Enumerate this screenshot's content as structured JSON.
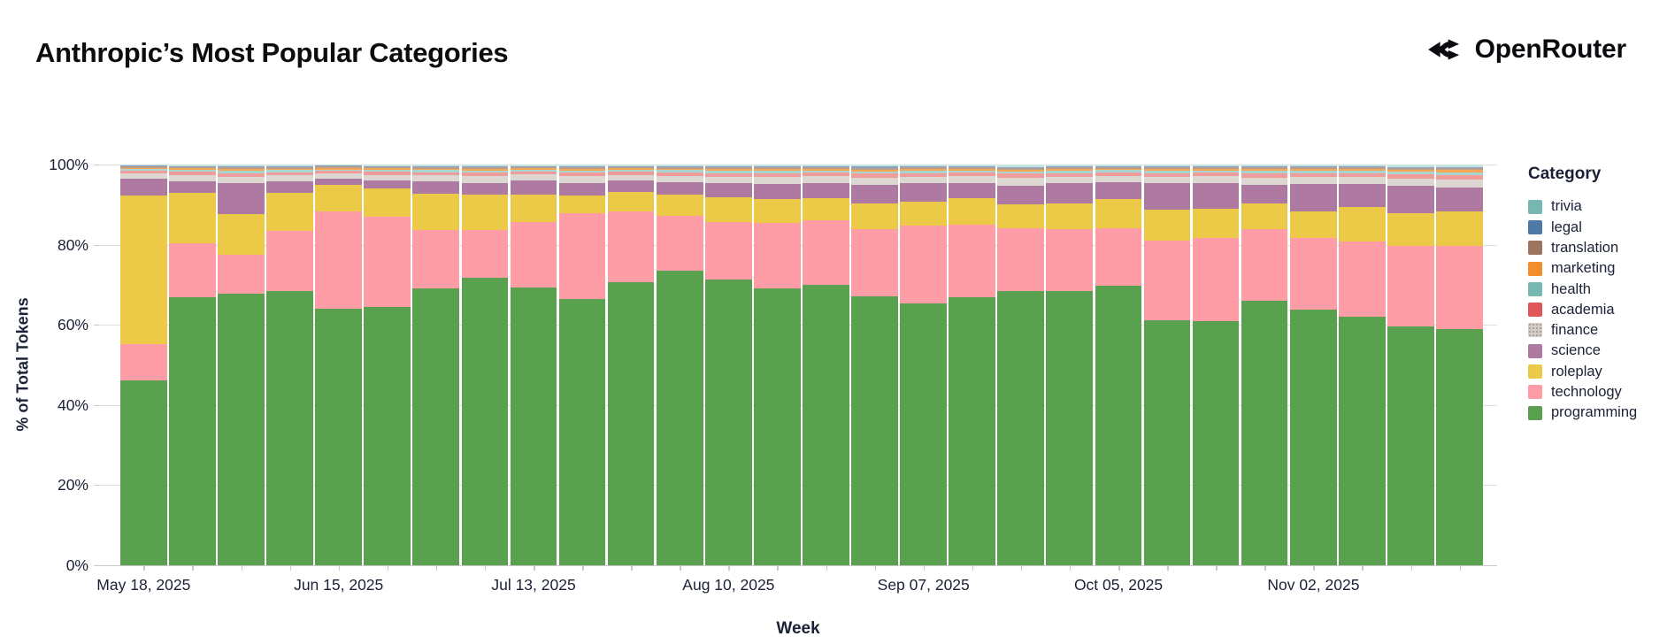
{
  "header": {
    "title": "Anthropic’s Most Popular Categories",
    "brand": "OpenRouter"
  },
  "chart_data": {
    "type": "bar",
    "stacked": true,
    "title": "Anthropic’s Most Popular Categories",
    "xlabel": "Week",
    "ylabel": "% of Total Tokens",
    "ylim": [
      0,
      100
    ],
    "grid": true,
    "legend_position": "right",
    "legend_title": "Category",
    "n_bars": 28,
    "yticks": [
      {
        "label": "0%",
        "value": 0
      },
      {
        "label": "20%",
        "value": 20
      },
      {
        "label": "40%",
        "value": 40
      },
      {
        "label": "60%",
        "value": 60
      },
      {
        "label": "80%",
        "value": 80
      },
      {
        "label": "100%",
        "value": 100
      }
    ],
    "x_labels": [
      {
        "label": "May 18, 2025",
        "bar_index": 0
      },
      {
        "label": "Jun 15, 2025",
        "bar_index": 4
      },
      {
        "label": "Jul 13, 2025",
        "bar_index": 8
      },
      {
        "label": "Aug 10, 2025",
        "bar_index": 12
      },
      {
        "label": "Sep 07, 2025",
        "bar_index": 16
      },
      {
        "label": "Oct 05, 2025",
        "bar_index": 20
      },
      {
        "label": "Nov 02, 2025",
        "bar_index": 24
      }
    ],
    "legend_order_top_to_bottom": [
      "trivia",
      "legal",
      "translation",
      "marketing",
      "health",
      "academia",
      "finance",
      "science",
      "roleplay",
      "technology",
      "programming"
    ],
    "series": [
      {
        "name": "programming",
        "color": "#59a14f",
        "bar_color": "#59a14f",
        "values": [
          46.1,
          66.9,
          67.7,
          68.4,
          64.0,
          64.5,
          69.1,
          71.7,
          69.3,
          66.5,
          70.6,
          73.5,
          71.3,
          69.1,
          70.0,
          67.1,
          65.3,
          67.0,
          68.4,
          68.5,
          69.8,
          61.2,
          60.9,
          66.0,
          63.8,
          62.0,
          59.5,
          59.0
        ]
      },
      {
        "name": "technology",
        "color": "#ff9da7",
        "bar_color": "#ff9da7",
        "values": [
          9.1,
          13.4,
          9.7,
          15.1,
          24.3,
          22.5,
          14.6,
          12.0,
          16.3,
          21.4,
          17.6,
          13.6,
          14.4,
          16.4,
          16.0,
          16.7,
          19.5,
          18.1,
          15.8,
          15.5,
          14.4,
          19.9,
          20.8,
          17.8,
          17.8,
          18.9,
          20.3,
          20.8
        ]
      },
      {
        "name": "roleplay",
        "color": "#edc948",
        "bar_color": "#edc948",
        "values": [
          37.1,
          12.7,
          10.3,
          9.5,
          6.6,
          7.0,
          9.0,
          8.8,
          6.9,
          4.4,
          5.0,
          5.5,
          6.2,
          5.9,
          5.6,
          6.5,
          5.9,
          6.5,
          5.9,
          6.4,
          7.2,
          7.6,
          7.3,
          6.6,
          6.6,
          8.4,
          8.1,
          8.4
        ]
      },
      {
        "name": "science",
        "color": "#af7aa1",
        "bar_color": "#af7aa1",
        "values": [
          4.2,
          2.9,
          7.6,
          2.8,
          1.5,
          2.0,
          3.1,
          2.9,
          3.6,
          3.1,
          2.8,
          3.0,
          3.4,
          3.7,
          3.8,
          4.6,
          4.6,
          3.8,
          4.7,
          4.9,
          4.3,
          6.6,
          6.4,
          4.6,
          6.9,
          5.8,
          6.7,
          6.1
        ]
      },
      {
        "name": "finance",
        "color": "#bab0ab",
        "bar_color": "#ddd7d2",
        "pattern": "dots",
        "values": [
          1.3,
          1.5,
          1.7,
          1.5,
          1.3,
          1.4,
          1.5,
          1.7,
          1.4,
          1.7,
          1.4,
          1.6,
          1.7,
          1.8,
          1.7,
          1.8,
          1.7,
          1.7,
          1.9,
          1.7,
          1.5,
          1.7,
          1.7,
          1.8,
          1.8,
          1.8,
          1.9,
          2.0
        ]
      },
      {
        "name": "academia",
        "color": "#e15759",
        "bar_color": "#ef9c9b",
        "values": [
          0.7,
          0.8,
          0.9,
          0.8,
          0.7,
          0.8,
          0.8,
          0.9,
          0.8,
          0.9,
          0.8,
          0.9,
          0.9,
          1.0,
          0.9,
          1.0,
          0.9,
          0.9,
          1.0,
          0.9,
          0.9,
          0.9,
          0.9,
          1.0,
          1.0,
          1.0,
          1.1,
          1.1
        ]
      },
      {
        "name": "health",
        "color": "#76b7b2",
        "bar_color": "#a9d5d1",
        "values": [
          0.4,
          0.5,
          0.5,
          0.5,
          0.4,
          0.5,
          0.5,
          0.5,
          0.4,
          0.5,
          0.5,
          0.5,
          0.5,
          0.5,
          0.5,
          0.6,
          0.5,
          0.5,
          0.6,
          0.5,
          0.5,
          0.5,
          0.5,
          0.6,
          0.5,
          0.5,
          0.6,
          0.6
        ]
      },
      {
        "name": "marketing",
        "color": "#f28e2c",
        "bar_color": "#f5a654",
        "values": [
          0.3,
          0.4,
          0.5,
          0.4,
          0.4,
          0.4,
          0.4,
          0.5,
          0.4,
          0.5,
          0.4,
          0.4,
          0.5,
          0.5,
          0.5,
          0.5,
          0.5,
          0.5,
          0.5,
          0.5,
          0.4,
          0.5,
          0.5,
          0.5,
          0.5,
          0.5,
          0.5,
          0.6
        ]
      },
      {
        "name": "translation",
        "color": "#9c755f",
        "bar_color": "#bb9d8b",
        "values": [
          0.3,
          0.3,
          0.4,
          0.3,
          0.3,
          0.3,
          0.3,
          0.4,
          0.3,
          0.4,
          0.3,
          0.3,
          0.4,
          0.4,
          0.4,
          0.4,
          0.4,
          0.4,
          0.4,
          0.4,
          0.3,
          0.4,
          0.4,
          0.4,
          0.4,
          0.4,
          0.4,
          0.5
        ]
      },
      {
        "name": "legal",
        "color": "#4e79a7",
        "bar_color": "#87a3c4",
        "values": [
          0.2,
          0.2,
          0.2,
          0.2,
          0.2,
          0.2,
          0.2,
          0.2,
          0.2,
          0.2,
          0.2,
          0.2,
          0.2,
          0.2,
          0.2,
          0.3,
          0.2,
          0.2,
          0.2,
          0.2,
          0.2,
          0.2,
          0.2,
          0.2,
          0.2,
          0.2,
          0.3,
          0.3
        ]
      },
      {
        "name": "trivia",
        "color": "#76b7b2",
        "bar_color": "#c6e2df",
        "pattern": "dash",
        "values": [
          0.3,
          0.4,
          0.5,
          0.5,
          0.3,
          0.4,
          0.5,
          0.4,
          0.4,
          0.4,
          0.4,
          0.5,
          0.5,
          0.5,
          0.4,
          0.5,
          0.5,
          0.4,
          0.6,
          0.5,
          0.5,
          0.5,
          0.4,
          0.5,
          0.5,
          0.5,
          0.6,
          0.6
        ]
      }
    ]
  }
}
